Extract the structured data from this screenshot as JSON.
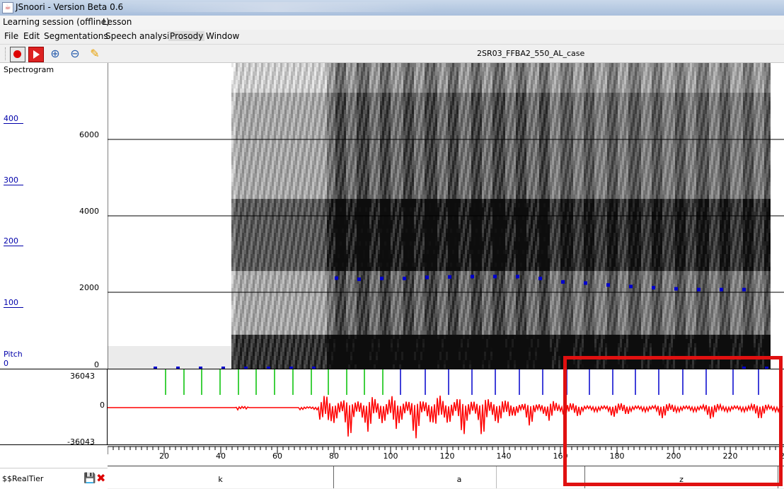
{
  "window": {
    "title": "JSnoori - Version Beta 0.6"
  },
  "session_bar": {
    "items": [
      "Learning session (offline)",
      "Lesson"
    ]
  },
  "menu": {
    "items": [
      "File",
      "Edit",
      "Segmentations",
      "Speech analysis",
      "Prosody",
      "Window"
    ],
    "active": "Prosody"
  },
  "toolbar": {
    "icons": [
      "record-icon",
      "play-icon",
      "zoom-in-icon",
      "zoom-out-icon",
      "pencil-icon"
    ]
  },
  "file": {
    "name": "2SR03_FFBA2_550_AL_case"
  },
  "spectrogram": {
    "label": "Spectrogram",
    "freq_labels": [
      "6000",
      "4000",
      "2000",
      "0"
    ],
    "pitch_labels": [
      "400",
      "300",
      "200",
      "100"
    ],
    "pitch_title": "Pitch",
    "pitch_zero": "0",
    "pitch_points": [
      2380,
      2350,
      2370,
      2370,
      2400,
      2410,
      2420,
      2420,
      2420,
      2370,
      2280,
      2250,
      2200,
      2160,
      2130,
      2100,
      2080,
      2080,
      2080
    ]
  },
  "waveform": {
    "max_label": "36043",
    "zero_label": "0",
    "min_label": "-36043"
  },
  "time_axis": {
    "ticks": [
      "20",
      "40",
      "60",
      "80",
      "100",
      "120",
      "140",
      "160",
      "180",
      "200",
      "220"
    ],
    "last_label": "2"
  },
  "tier": {
    "name": "$$RealTier",
    "segments": [
      {
        "label": "k"
      },
      {
        "label": "a"
      },
      {
        "label": "z"
      }
    ]
  },
  "colors": {
    "highlight": "#e01010",
    "waveform": "#ff0000",
    "pitch": "#0000cc",
    "marks_voiced": "#00c000",
    "marks_unvoiced": "#0000cc"
  }
}
